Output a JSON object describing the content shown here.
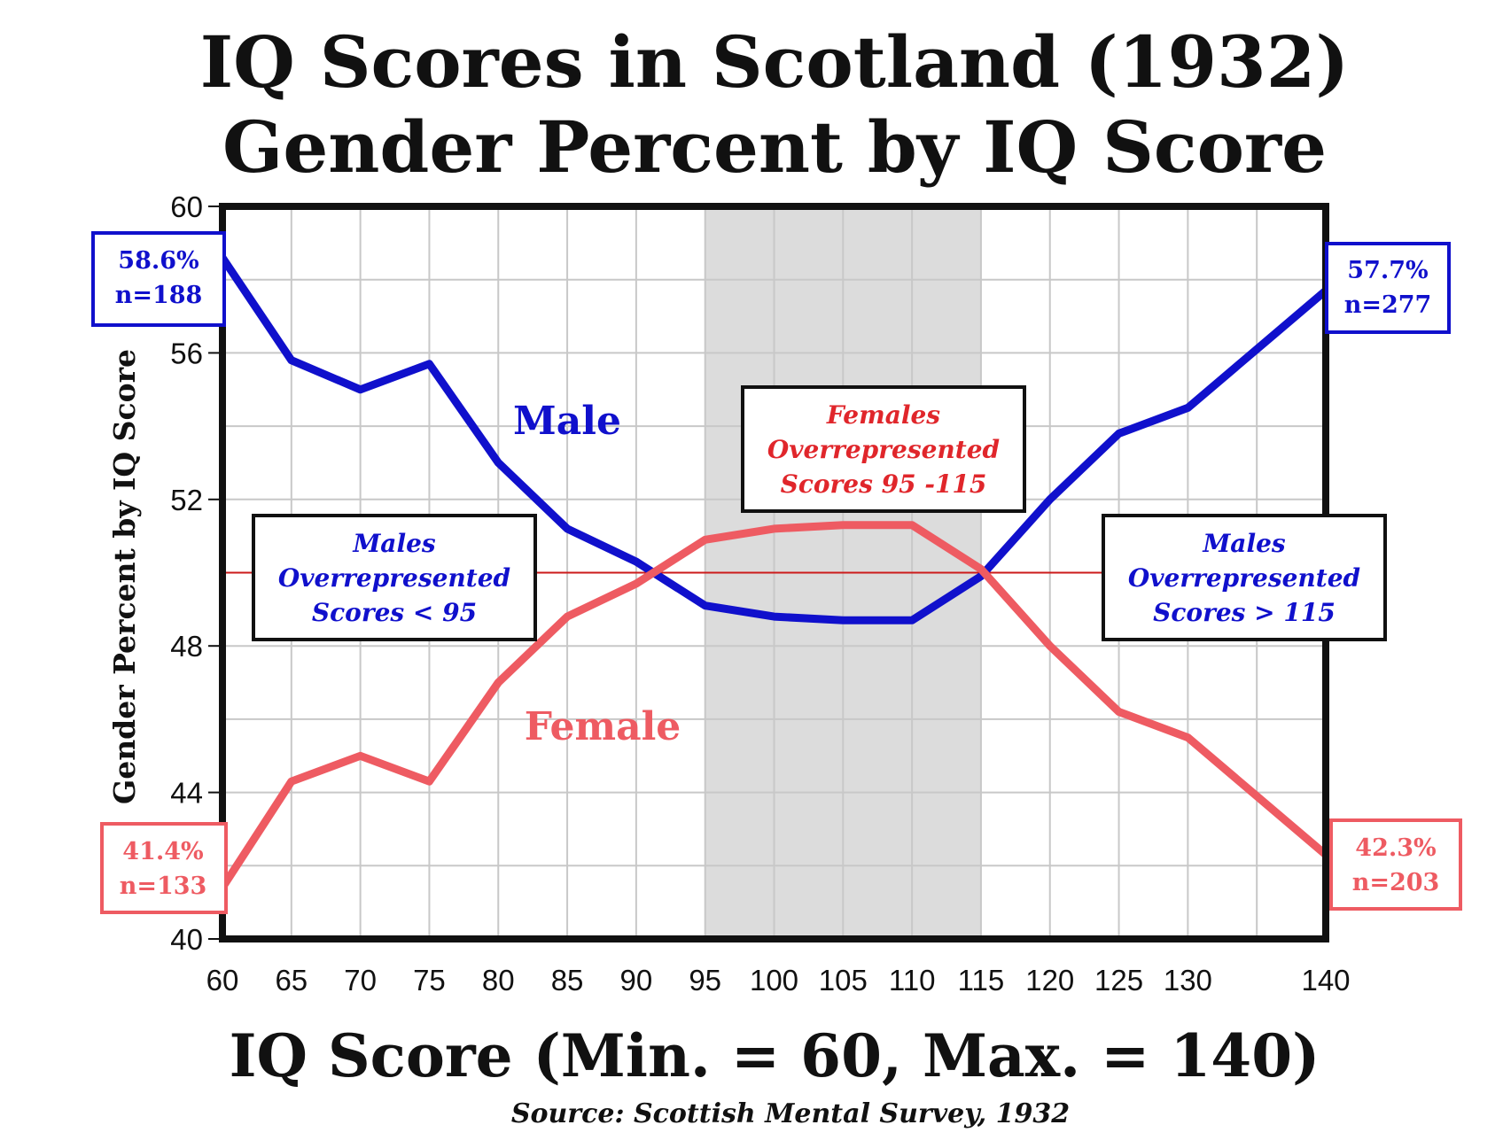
{
  "chart_data": {
    "type": "line",
    "title_line1": "IQ Scores in Scotland (1932)",
    "title_line2": "Gender Percent  by IQ Score",
    "xlabel": "IQ Score (Min. = 60, Max. = 140)",
    "ylabel": "Gender Percent by IQ Score",
    "source": "Source: Scottish Mental Survey, 1932",
    "x": [
      60,
      65,
      70,
      75,
      80,
      85,
      90,
      95,
      100,
      105,
      110,
      115,
      120,
      125,
      130,
      140
    ],
    "xticks": [
      "60",
      "65",
      "70",
      "75",
      "80",
      "85",
      "90",
      "95",
      "100",
      "105",
      "110",
      "115",
      "120",
      "125",
      "130",
      "140"
    ],
    "yticks": [
      "60",
      "56",
      "52",
      "48",
      "44",
      "40"
    ],
    "ytick_values": [
      60,
      56,
      52,
      48,
      44,
      40
    ],
    "xlim": [
      60,
      140
    ],
    "ylim": [
      40,
      60
    ],
    "grid": true,
    "reference_line": 50,
    "shaded_band": [
      95,
      115
    ],
    "series": [
      {
        "name": "Male",
        "color": "#1010cc",
        "values": [
          58.6,
          55.8,
          55.0,
          55.7,
          53.0,
          51.2,
          50.3,
          49.1,
          48.8,
          48.7,
          48.7,
          49.9,
          52.0,
          53.8,
          54.5,
          57.7
        ]
      },
      {
        "name": "Female",
        "color": "#ee5b62",
        "values": [
          41.4,
          44.3,
          45.0,
          44.3,
          47.0,
          48.8,
          49.7,
          50.9,
          51.2,
          51.3,
          51.3,
          50.1,
          48.0,
          46.2,
          45.5,
          42.3
        ]
      }
    ],
    "series_labels": {
      "male": "Male",
      "female": "Female"
    },
    "endpoint_labels": {
      "male_left_pct": "58.6%",
      "male_left_n": "n=188",
      "male_right_pct": "57.7%",
      "male_right_n": "n=277",
      "female_left_pct": "41.4%",
      "female_left_n": "n=133",
      "female_right_pct": "42.3%",
      "female_right_n": "n=203"
    },
    "annotations": {
      "left_line1": "Males",
      "left_line2": "Overrepresented",
      "left_line3": "Scores < 95",
      "center_line1": "Females",
      "center_line2": "Overrepresented",
      "center_line3": "Scores 95 -115",
      "right_line1": "Males",
      "right_line2": "Overrepresented",
      "right_line3": "Scores > 115"
    }
  }
}
